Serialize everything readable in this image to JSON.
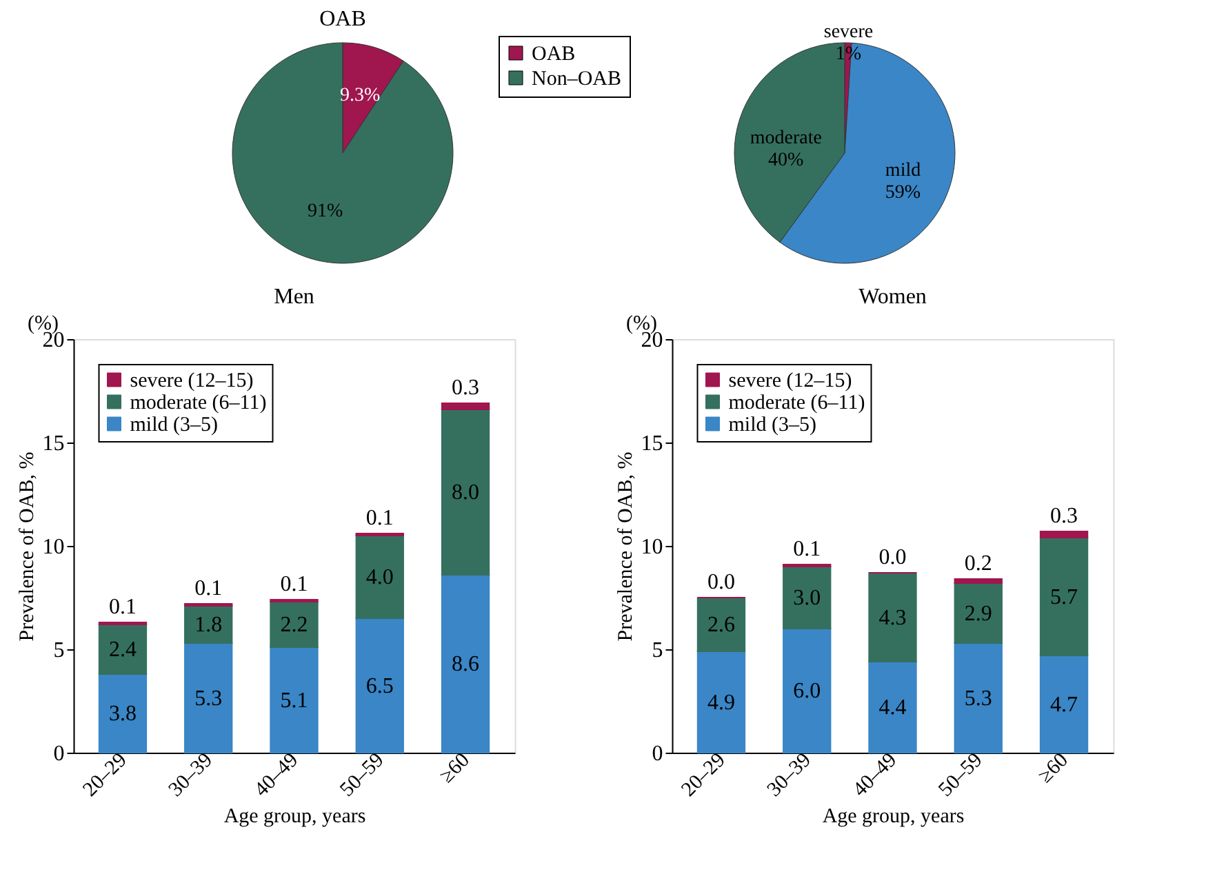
{
  "chart_data": [
    {
      "type": "pie",
      "title": "OAB",
      "categories": [
        "OAB",
        "Non–OAB"
      ],
      "values": [
        9.3,
        91
      ],
      "colors": [
        "#a0164f",
        "#35705f"
      ],
      "value_labels": [
        "9.3%",
        "91%"
      ],
      "legend": "right"
    },
    {
      "type": "pie",
      "categories": [
        "severe",
        "mild",
        "moderate"
      ],
      "values": [
        1,
        59,
        40
      ],
      "colors": [
        "#a0164f",
        "#3a86c6",
        "#35705f"
      ],
      "value_labels": [
        "1%",
        "59%",
        "40%"
      ],
      "legend": false
    },
    {
      "type": "bar",
      "stacked": true,
      "title": "Men",
      "xlabel": "Age group, years",
      "ylabel": "Prevalence of OAB, %",
      "annotations": [
        "(%)"
      ],
      "categories": [
        "20–29",
        "30–39",
        "40–49",
        "50–59",
        "≥60"
      ],
      "ylim": [
        0,
        20
      ],
      "yticks": [
        0,
        5,
        10,
        15,
        20
      ],
      "grid": false,
      "legend": "top left",
      "series": [
        {
          "name": "mild (3–5)",
          "color": "#3a86c6",
          "values": [
            3.8,
            5.3,
            5.1,
            6.5,
            8.6
          ],
          "value_labels": [
            "3.8",
            "5.3",
            "5.1",
            "6.5",
            "8.6"
          ]
        },
        {
          "name": "moderate (6–11)",
          "color": "#35705f",
          "values": [
            2.4,
            1.8,
            2.2,
            4.0,
            8.0
          ],
          "value_labels": [
            "2.4",
            "1.8",
            "2.2",
            "4.0",
            "8.0"
          ]
        },
        {
          "name": "severe (12–15)",
          "color": "#a0164f",
          "values": [
            0.1,
            0.1,
            0.1,
            0.1,
            0.3
          ],
          "value_labels": [
            "0.1",
            "0.1",
            "0.1",
            "0.1",
            "0.3"
          ]
        }
      ]
    },
    {
      "type": "bar",
      "stacked": true,
      "title": "Women",
      "xlabel": "Age group, years",
      "ylabel": "Prevalence of OAB, %",
      "annotations": [
        "(%)"
      ],
      "categories": [
        "20–29",
        "30–39",
        "40–49",
        "50–59",
        "≥60"
      ],
      "ylim": [
        0,
        20
      ],
      "yticks": [
        0,
        5,
        10,
        15,
        20
      ],
      "grid": false,
      "legend": "top left",
      "series": [
        {
          "name": "mild (3–5)",
          "color": "#3a86c6",
          "values": [
            4.9,
            6.0,
            4.4,
            5.3,
            4.7
          ],
          "value_labels": [
            "4.9",
            "6.0",
            "4.4",
            "5.3",
            "4.7"
          ]
        },
        {
          "name": "moderate (6–11)",
          "color": "#35705f",
          "values": [
            2.6,
            3.0,
            4.3,
            2.9,
            5.7
          ],
          "value_labels": [
            "2.6",
            "3.0",
            "4.3",
            "2.9",
            "5.7"
          ]
        },
        {
          "name": "severe (12–15)",
          "color": "#a0164f",
          "values": [
            0.0,
            0.1,
            0.0,
            0.2,
            0.3
          ],
          "value_labels": [
            "0.0",
            "0.1",
            "0.0",
            "0.2",
            "0.3"
          ]
        }
      ]
    }
  ]
}
